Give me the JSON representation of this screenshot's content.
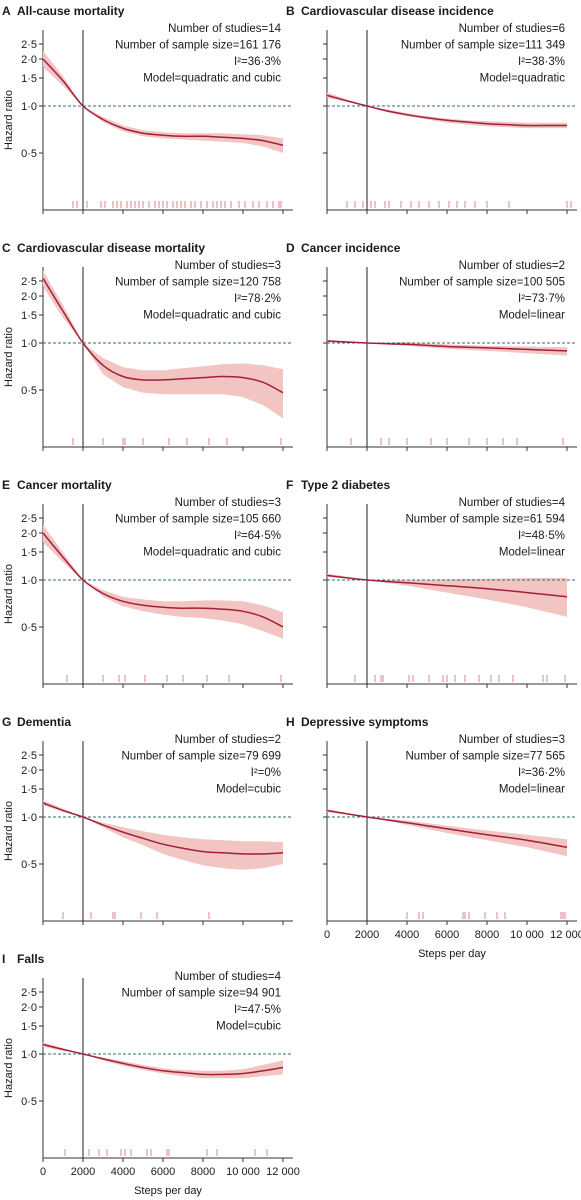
{
  "figure": {
    "x_axis_title": "Steps per day",
    "y_axis_title": "Hazard ratio",
    "y_ticks": [
      "2·5",
      "2·0",
      "1·5",
      "1·0",
      "0·5"
    ],
    "x_ticks": [
      "0",
      "2000",
      "4000",
      "6000",
      "8000",
      "10 000",
      "12 000"
    ],
    "colors": {
      "curve": "#a31f3a",
      "band": "#f2c5c3",
      "rug": "#d9868c",
      "reference": "#2f6f6d"
    }
  },
  "chart_data": [
    {
      "panel": "A",
      "title": "All-cause mortality",
      "type": "line",
      "stats": [
        "Number of studies=14",
        "Number of sample size=161 176",
        "I²=36·3%",
        "Model=quadratic and cubic"
      ],
      "x": [
        0,
        1000,
        2000,
        3000,
        4000,
        5000,
        6000,
        7000,
        8000,
        9000,
        10000,
        11000,
        12000
      ],
      "y": [
        2.0,
        1.45,
        1.0,
        0.82,
        0.72,
        0.67,
        0.65,
        0.64,
        0.64,
        0.63,
        0.62,
        0.6,
        0.56
      ],
      "lower": [
        1.78,
        1.35,
        1.0,
        0.79,
        0.69,
        0.64,
        0.62,
        0.61,
        0.6,
        0.59,
        0.58,
        0.55,
        0.5
      ],
      "upper": [
        2.25,
        1.55,
        1.0,
        0.85,
        0.75,
        0.7,
        0.68,
        0.67,
        0.67,
        0.67,
        0.66,
        0.65,
        0.62
      ],
      "rug": [
        1500,
        1700,
        2200,
        2900,
        3100,
        3500,
        3700,
        3900,
        4200,
        4400,
        4600,
        4800,
        5000,
        5300,
        5600,
        5800,
        6000,
        6200,
        6500,
        6700,
        6900,
        7100,
        7400,
        7600,
        7900,
        8200,
        8500,
        8700,
        8900,
        9100,
        9400,
        9800,
        10100,
        10500,
        10800,
        11200,
        11500,
        11800,
        11900
      ],
      "xlim": [
        0,
        12500
      ],
      "ylim": [
        0,
        2.8
      ]
    },
    {
      "panel": "B",
      "title": "Cardiovascular disease incidence",
      "type": "line",
      "stats": [
        "Number of studies=6",
        "Number of sample size=111 349",
        "I²=38·3%",
        "Model=quadratic"
      ],
      "x": [
        0,
        1000,
        2000,
        3000,
        4000,
        5000,
        6000,
        7000,
        8000,
        9000,
        10000,
        11000,
        12000
      ],
      "y": [
        1.17,
        1.08,
        1.0,
        0.93,
        0.88,
        0.84,
        0.81,
        0.79,
        0.77,
        0.76,
        0.75,
        0.75,
        0.75
      ],
      "lower": [
        1.13,
        1.06,
        1.0,
        0.91,
        0.86,
        0.82,
        0.78,
        0.76,
        0.74,
        0.73,
        0.72,
        0.72,
        0.72
      ],
      "upper": [
        1.22,
        1.1,
        1.0,
        0.95,
        0.9,
        0.86,
        0.83,
        0.81,
        0.8,
        0.79,
        0.78,
        0.78,
        0.78
      ],
      "rug": [
        1000,
        1400,
        1800,
        2200,
        2400,
        2900,
        3100,
        3700,
        4200,
        4600,
        5100,
        5600,
        6100,
        6500,
        6900,
        7400,
        8000,
        9100,
        12000,
        12200
      ],
      "xlim": [
        0,
        12500
      ],
      "ylim": [
        0,
        2.8
      ]
    },
    {
      "panel": "C",
      "title": "Cardiovascular disease mortality",
      "type": "line",
      "stats": [
        "Number of studies=3",
        "Number of sample size=120 758",
        "I²=78·2%",
        "Model=quadratic and cubic"
      ],
      "x": [
        0,
        1000,
        2000,
        3000,
        4000,
        5000,
        6000,
        7000,
        8000,
        9000,
        10000,
        11000,
        12000
      ],
      "y": [
        2.6,
        1.6,
        1.0,
        0.72,
        0.61,
        0.58,
        0.58,
        0.59,
        0.6,
        0.61,
        0.6,
        0.56,
        0.48
      ],
      "lower": [
        2.3,
        1.45,
        1.0,
        0.63,
        0.52,
        0.48,
        0.47,
        0.47,
        0.47,
        0.47,
        0.45,
        0.4,
        0.33
      ],
      "upper": [
        2.9,
        1.75,
        1.0,
        0.8,
        0.7,
        0.67,
        0.67,
        0.69,
        0.71,
        0.73,
        0.74,
        0.72,
        0.68
      ],
      "rug": [
        1500,
        3000,
        4000,
        4100,
        5000,
        6300,
        7200,
        8300,
        9200,
        11900
      ],
      "xlim": [
        0,
        12500
      ],
      "ylim": [
        0,
        2.8
      ]
    },
    {
      "panel": "D",
      "title": "Cancer incidence",
      "type": "line",
      "stats": [
        "Number of studies=2",
        "Number of sample size=100 505",
        "I²=73·7%",
        "Model=linear"
      ],
      "x": [
        0,
        2000,
        4000,
        6000,
        8000,
        10000,
        12000
      ],
      "y": [
        1.03,
        1.0,
        0.98,
        0.95,
        0.93,
        0.91,
        0.89
      ],
      "lower": [
        1.01,
        1.0,
        0.96,
        0.92,
        0.89,
        0.86,
        0.83
      ],
      "upper": [
        1.05,
        1.0,
        1.01,
        0.98,
        0.96,
        0.95,
        0.94
      ],
      "rug": [
        1200,
        2700,
        3100,
        4000,
        5200,
        6000,
        7100,
        8000,
        8800,
        9500,
        11800
      ],
      "xlim": [
        0,
        12500
      ],
      "ylim": [
        0,
        2.8
      ]
    },
    {
      "panel": "E",
      "title": "Cancer mortality",
      "type": "line",
      "stats": [
        "Number of studies=3",
        "Number of sample size=105 660",
        "I²=64·5%",
        "Model=quadratic and cubic"
      ],
      "x": [
        0,
        1000,
        2000,
        3000,
        4000,
        5000,
        6000,
        7000,
        8000,
        9000,
        10000,
        11000,
        12000
      ],
      "y": [
        2.0,
        1.4,
        1.0,
        0.82,
        0.73,
        0.69,
        0.67,
        0.66,
        0.66,
        0.65,
        0.63,
        0.58,
        0.5
      ],
      "lower": [
        1.75,
        1.3,
        1.0,
        0.78,
        0.68,
        0.63,
        0.6,
        0.58,
        0.57,
        0.55,
        0.52,
        0.47,
        0.42
      ],
      "upper": [
        2.25,
        1.5,
        1.0,
        0.86,
        0.78,
        0.75,
        0.73,
        0.73,
        0.74,
        0.74,
        0.73,
        0.69,
        0.62
      ],
      "rug": [
        1200,
        3000,
        3800,
        4100,
        5100,
        6200,
        7000,
        8200,
        9300,
        11900
      ],
      "xlim": [
        0,
        12500
      ],
      "ylim": [
        0,
        2.8
      ]
    },
    {
      "panel": "F",
      "title": "Type 2 diabetes",
      "type": "line",
      "stats": [
        "Number of studies=4",
        "Number of sample size=61 594",
        "I²=48·5%",
        "Model=linear"
      ],
      "x": [
        0,
        2000,
        4000,
        6000,
        8000,
        10000,
        12000
      ],
      "y": [
        1.07,
        1.0,
        0.96,
        0.92,
        0.88,
        0.83,
        0.78
      ],
      "lower": [
        1.05,
        1.0,
        0.92,
        0.83,
        0.75,
        0.67,
        0.58
      ],
      "upper": [
        1.1,
        1.0,
        1.0,
        1.01,
        1.02,
        1.03,
        1.03
      ],
      "rug": [
        1400,
        2400,
        2700,
        2800,
        4100,
        4300,
        5100,
        5800,
        6000,
        6400,
        6900,
        7600,
        8200,
        8600,
        9300,
        10800,
        11000,
        11900
      ],
      "xlim": [
        0,
        12500
      ],
      "ylim": [
        0,
        2.8
      ]
    },
    {
      "panel": "G",
      "title": "Dementia",
      "type": "line",
      "stats": [
        "Number of studies=2",
        "Number of sample size=79 699",
        "I²=0%",
        "Model=cubic"
      ],
      "x": [
        0,
        1000,
        2000,
        3000,
        4000,
        5000,
        6000,
        7000,
        8000,
        9000,
        10000,
        11000,
        12000
      ],
      "y": [
        1.23,
        1.1,
        1.0,
        0.89,
        0.8,
        0.73,
        0.67,
        0.63,
        0.6,
        0.59,
        0.58,
        0.58,
        0.59
      ],
      "lower": [
        1.19,
        1.08,
        1.0,
        0.86,
        0.74,
        0.66,
        0.58,
        0.53,
        0.49,
        0.47,
        0.46,
        0.47,
        0.5
      ],
      "upper": [
        1.28,
        1.13,
        1.0,
        0.92,
        0.86,
        0.81,
        0.77,
        0.74,
        0.72,
        0.71,
        0.7,
        0.7,
        0.69
      ],
      "rug": [
        1000,
        2400,
        3500,
        3600,
        4900,
        5700,
        8300
      ],
      "xlim": [
        0,
        12500
      ],
      "ylim": [
        0,
        2.8
      ]
    },
    {
      "panel": "H",
      "title": "Depressive symptoms",
      "type": "line",
      "stats": [
        "Number of studies=3",
        "Number of sample size=77 565",
        "I²=36·2%",
        "Model=linear"
      ],
      "x": [
        0,
        2000,
        4000,
        6000,
        8000,
        10000,
        12000
      ],
      "y": [
        1.1,
        1.0,
        0.92,
        0.84,
        0.77,
        0.71,
        0.64
      ],
      "lower": [
        1.07,
        1.0,
        0.89,
        0.79,
        0.71,
        0.64,
        0.56
      ],
      "upper": [
        1.12,
        1.0,
        0.95,
        0.88,
        0.82,
        0.77,
        0.72
      ],
      "rug": [
        4000,
        4600,
        4800,
        6800,
        6900,
        7100,
        7900,
        8500,
        8900,
        11700,
        11800,
        11900
      ],
      "xlim": [
        0,
        12500
      ],
      "ylim": [
        0,
        2.8
      ]
    },
    {
      "panel": "I",
      "title": "Falls",
      "type": "line",
      "stats": [
        "Number of studies=4",
        "Number of sample size=94 901",
        "I²=47·5%",
        "Model=cubic"
      ],
      "x": [
        0,
        1000,
        2000,
        3000,
        4000,
        5000,
        6000,
        7000,
        8000,
        9000,
        10000,
        11000,
        12000
      ],
      "y": [
        1.15,
        1.07,
        1.0,
        0.93,
        0.87,
        0.82,
        0.78,
        0.76,
        0.74,
        0.74,
        0.75,
        0.78,
        0.82
      ],
      "lower": [
        1.11,
        1.05,
        1.0,
        0.91,
        0.84,
        0.79,
        0.75,
        0.72,
        0.7,
        0.7,
        0.7,
        0.72,
        0.74
      ],
      "upper": [
        1.19,
        1.09,
        1.0,
        0.95,
        0.9,
        0.85,
        0.81,
        0.79,
        0.78,
        0.78,
        0.8,
        0.85,
        0.91
      ],
      "rug": [
        1100,
        2300,
        2800,
        3200,
        3900,
        4100,
        4400,
        5200,
        5400,
        6200,
        6300,
        8200,
        8700,
        10600,
        11200
      ],
      "xlim": [
        0,
        12500
      ],
      "ylim": [
        0,
        2.8
      ]
    }
  ]
}
